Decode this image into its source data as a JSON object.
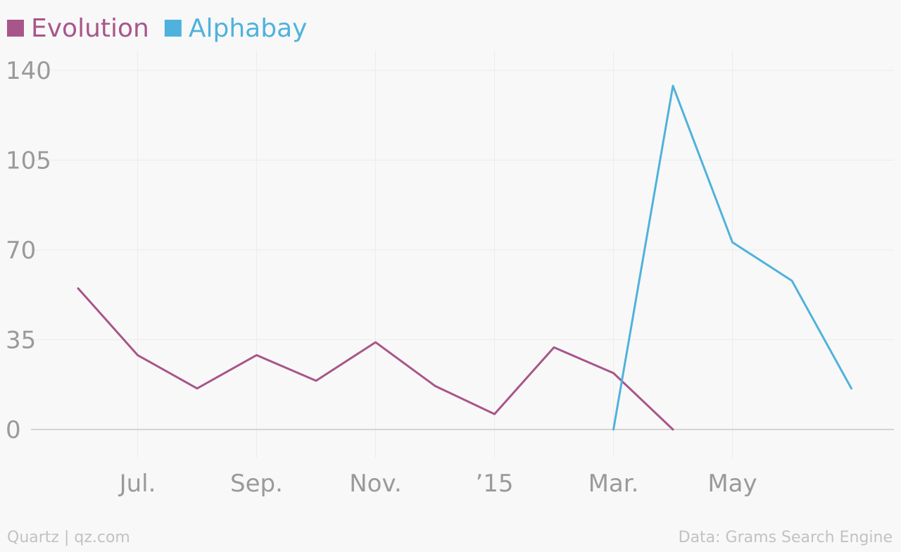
{
  "chart_data": {
    "type": "line",
    "x": [
      "2014-06-01",
      "2014-07-01",
      "2014-08-01",
      "2014-09-01",
      "2014-10-01",
      "2014-11-01",
      "2014-12-01",
      "2015-01-01",
      "2015-02-01",
      "2015-03-01",
      "2015-04-01",
      "2015-05-01",
      "2015-06-01",
      "2015-07-01"
    ],
    "series": [
      {
        "name": "Evolution",
        "color": "#a8568a",
        "values": [
          55,
          29,
          16,
          29,
          19,
          34,
          17,
          6,
          32,
          22,
          0,
          null,
          null,
          null
        ]
      },
      {
        "name": "Alphabay",
        "color": "#4fb2dc",
        "values": [
          null,
          null,
          null,
          null,
          null,
          null,
          null,
          null,
          null,
          0,
          134,
          73,
          58,
          16
        ]
      }
    ],
    "xticks": [
      {
        "x": "2014-07-01",
        "label": "Jul."
      },
      {
        "x": "2014-09-01",
        "label": "Sep."
      },
      {
        "x": "2014-11-01",
        "label": "Nov."
      },
      {
        "x": "2015-01-01",
        "label": "’15"
      },
      {
        "x": "2015-03-01",
        "label": "Mar."
      },
      {
        "x": "2015-05-01",
        "label": "May"
      }
    ],
    "yticks": [
      0,
      35,
      70,
      105,
      140
    ],
    "ylim": [
      0,
      140
    ],
    "grid": true,
    "legend_position": "top-left"
  },
  "footer": {
    "left": "Quartz | qz.com",
    "right": "Data: Grams Search Engine"
  },
  "colors": {
    "background": "#f8f8f8",
    "grid": "#ececec",
    "baseline": "#c8c8c8",
    "tick_text": "#9a9a9a",
    "footer_text": "#c2c2c2"
  }
}
